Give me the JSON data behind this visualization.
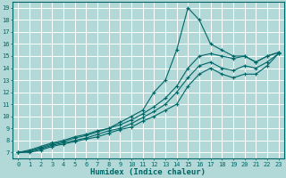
{
  "background_color": "#b2d8d8",
  "grid_color": "#ffffff",
  "line_color": "#006666",
  "xlabel": "Humidex (Indice chaleur)",
  "xlim": [
    -0.5,
    23.5
  ],
  "ylim": [
    6.5,
    19.5
  ],
  "xticks": [
    0,
    1,
    2,
    3,
    4,
    5,
    6,
    7,
    8,
    9,
    10,
    11,
    12,
    13,
    14,
    15,
    16,
    17,
    18,
    19,
    20,
    21,
    22,
    23
  ],
  "yticks": [
    7,
    8,
    9,
    10,
    11,
    12,
    13,
    14,
    15,
    16,
    17,
    18,
    19
  ],
  "lines": [
    {
      "x": [
        0,
        1,
        2,
        3,
        4,
        5,
        6,
        7,
        8,
        9,
        10,
        11,
        12,
        13,
        14,
        15,
        16,
        17,
        18,
        19,
        20,
        21,
        22,
        23
      ],
      "y": [
        7.0,
        7.2,
        7.5,
        7.8,
        8.0,
        8.3,
        8.5,
        8.8,
        9.0,
        9.5,
        10.0,
        10.5,
        12.0,
        13.0,
        15.5,
        19.0,
        18.0,
        16.0,
        15.5,
        15.0,
        15.0,
        14.5,
        15.0,
        15.3
      ]
    },
    {
      "x": [
        0,
        1,
        2,
        3,
        4,
        5,
        6,
        7,
        8,
        9,
        10,
        11,
        12,
        13,
        14,
        15,
        16,
        17,
        18,
        19,
        20,
        21,
        22,
        23
      ],
      "y": [
        7.0,
        7.1,
        7.4,
        7.7,
        7.9,
        8.2,
        8.4,
        8.7,
        9.0,
        9.3,
        9.7,
        10.2,
        10.8,
        11.5,
        12.5,
        14.0,
        15.0,
        15.2,
        15.0,
        14.8,
        15.0,
        14.5,
        15.0,
        15.3
      ]
    },
    {
      "x": [
        0,
        1,
        2,
        3,
        4,
        5,
        6,
        7,
        8,
        9,
        10,
        11,
        12,
        13,
        14,
        15,
        16,
        17,
        18,
        19,
        20,
        21,
        22,
        23
      ],
      "y": [
        7.0,
        7.1,
        7.3,
        7.6,
        7.8,
        8.0,
        8.2,
        8.5,
        8.8,
        9.0,
        9.4,
        9.9,
        10.4,
        11.0,
        12.0,
        13.2,
        14.2,
        14.5,
        14.0,
        13.8,
        14.2,
        14.0,
        14.5,
        15.2
      ]
    },
    {
      "x": [
        0,
        1,
        2,
        3,
        4,
        5,
        6,
        7,
        8,
        9,
        10,
        11,
        12,
        13,
        14,
        15,
        16,
        17,
        18,
        19,
        20,
        21,
        22,
        23
      ],
      "y": [
        7.0,
        7.0,
        7.2,
        7.5,
        7.7,
        7.9,
        8.1,
        8.3,
        8.6,
        8.9,
        9.1,
        9.6,
        10.0,
        10.5,
        11.0,
        12.5,
        13.5,
        14.0,
        13.5,
        13.2,
        13.5,
        13.5,
        14.2,
        15.2
      ]
    }
  ],
  "marker": "+",
  "tick_fontsize": 5,
  "xlabel_fontsize": 6.5
}
